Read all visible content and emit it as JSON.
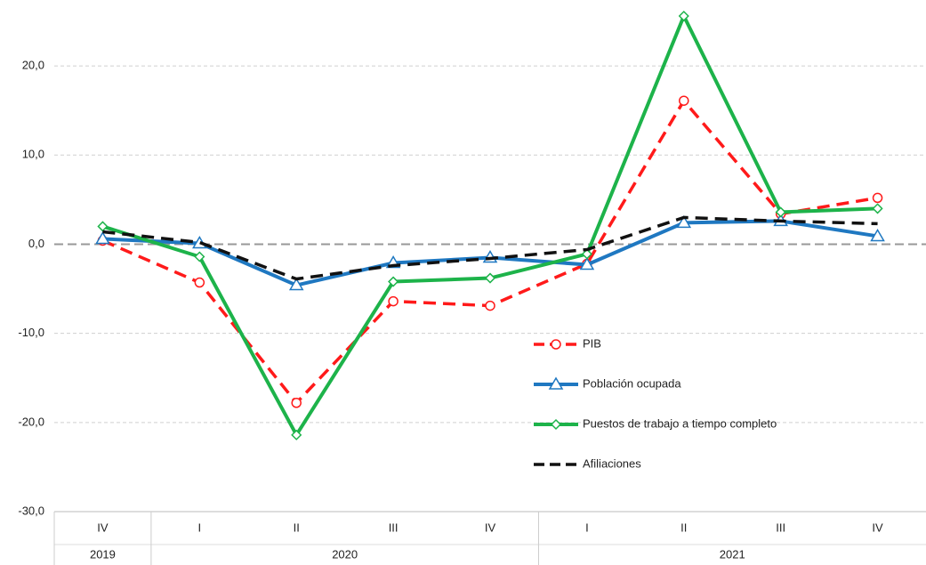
{
  "chart_data": {
    "type": "line",
    "categories": [
      "IV",
      "I",
      "II",
      "III",
      "IV",
      "I",
      "II",
      "III",
      "IV"
    ],
    "category_groups": [
      {
        "label": "2019",
        "count": 1
      },
      {
        "label": "2020",
        "count": 4
      },
      {
        "label": "2021",
        "count": 4
      }
    ],
    "ylim": [
      -30,
      27
    ],
    "yticks": [
      {
        "value": -30,
        "label": "-30,0"
      },
      {
        "value": -20,
        "label": "-20,0"
      },
      {
        "value": -10,
        "label": "-10,0"
      },
      {
        "value": 0,
        "label": "0,0"
      },
      {
        "value": 10,
        "label": "10,0"
      },
      {
        "value": 20,
        "label": "20,0"
      }
    ],
    "grid": true,
    "series": [
      {
        "name": "PIB",
        "color": "#ff1a1a",
        "dash": true,
        "marker": "circle",
        "values": [
          0.4,
          -4.3,
          -17.8,
          -6.4,
          -6.9,
          -2.2,
          16.1,
          3.4,
          5.2
        ]
      },
      {
        "name": "Población ocupada",
        "color": "#1f78c1",
        "dash": false,
        "marker": "triangle",
        "values": [
          0.6,
          0.1,
          -4.6,
          -2.1,
          -1.5,
          -2.3,
          2.4,
          2.6,
          0.9
        ]
      },
      {
        "name": "Puestos de trabajo a tiempo completo",
        "color": "#1db34a",
        "dash": false,
        "marker": "diamond",
        "values": [
          2.0,
          -1.4,
          -21.4,
          -4.2,
          -3.8,
          -1.1,
          25.6,
          3.6,
          4.0
        ]
      },
      {
        "name": "Afiliaciones",
        "color": "#111111",
        "dash": true,
        "marker": "none",
        "values": [
          1.4,
          0.2,
          -3.9,
          -2.4,
          -1.6,
          -0.6,
          3.0,
          2.6,
          2.3
        ]
      }
    ]
  }
}
